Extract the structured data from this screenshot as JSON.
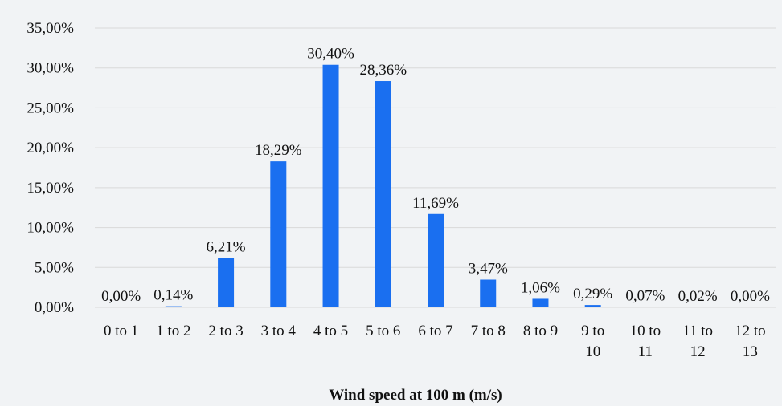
{
  "chart_data": {
    "type": "bar",
    "categories": [
      "0 to 1",
      "1 to 2",
      "2 to 3",
      "3 to 4",
      "4 to 5",
      "5 to 6",
      "6 to 7",
      "7 to 8",
      "8 to 9",
      "9 to 10",
      "10 to 11",
      "11 to 12",
      "12 to 13"
    ],
    "values": [
      0.0,
      0.14,
      6.21,
      18.29,
      30.4,
      28.36,
      11.69,
      3.47,
      1.06,
      0.29,
      0.07,
      0.02,
      0.0
    ],
    "data_labels": [
      "0,00%",
      "0,14%",
      "6,21%",
      "18,29%",
      "30,40%",
      "28,36%",
      "11,69%",
      "3,47%",
      "1,06%",
      "0,29%",
      "0,07%",
      "0,02%",
      "0,00%"
    ],
    "yticks": [
      0,
      5,
      10,
      15,
      20,
      25,
      30,
      35
    ],
    "ytick_labels": [
      "0,00%",
      "5,00%",
      "10,00%",
      "15,00%",
      "20,00%",
      "25,00%",
      "30,00%",
      "35,00%"
    ],
    "ylim": [
      0,
      35
    ],
    "xlabel": "Wind speed at 100 m (m/s)",
    "ylabel": "",
    "title": "",
    "grid": "horizontal",
    "legend": "none",
    "colors": {
      "bar": "#1a6ff0",
      "background": "#f1f3f5",
      "grid": "#d9d9d9",
      "text": "#111111"
    }
  }
}
